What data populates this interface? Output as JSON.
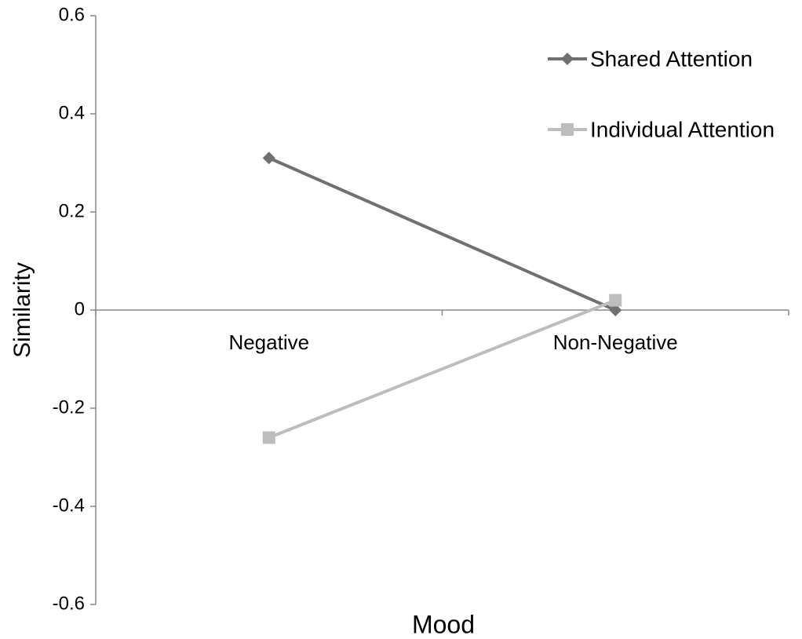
{
  "chart_data": {
    "type": "line",
    "xlabel": "Mood",
    "ylabel": "Similarity",
    "categories": [
      "Negative",
      "Non-Negative"
    ],
    "series": [
      {
        "name": "Shared Attention",
        "color": "#707070",
        "marker": "diamond",
        "values": [
          0.31,
          0.0
        ]
      },
      {
        "name": "Individual Attention",
        "color": "#bdbdbd",
        "marker": "square",
        "values": [
          -0.26,
          0.02
        ]
      }
    ],
    "ylim": [
      -0.6,
      0.6
    ],
    "yticks": [
      -0.6,
      -0.4,
      -0.2,
      0,
      0.2,
      0.4,
      0.6
    ],
    "grid": false,
    "legend": "upper right"
  }
}
